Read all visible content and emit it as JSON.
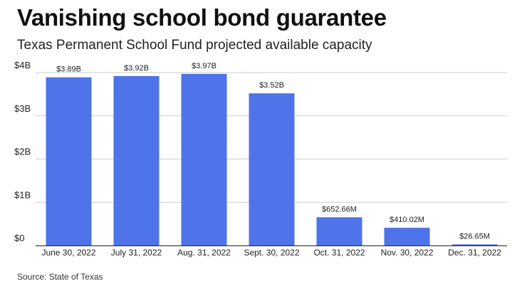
{
  "title": "Vanishing school bond guarantee",
  "subtitle": "Texas Permanent School Fund projected available capacity",
  "source": "Source: State of Texas",
  "colors": {
    "bar": "#4f73e8",
    "grid": "#cccccc",
    "axis": "#222222"
  },
  "chart_data": {
    "type": "bar",
    "categories": [
      "June 30, 2022",
      "July 31, 2022",
      "Aug. 31, 2022",
      "Sept. 30, 2022",
      "Oct. 31, 2022",
      "Nov. 30, 2022",
      "Dec. 31, 2022"
    ],
    "values": [
      3.89,
      3.92,
      3.97,
      3.52,
      0.65266,
      0.41002,
      0.02665
    ],
    "value_labels": [
      "$3.89B",
      "$3.92B",
      "$3.97B",
      "$3.52B",
      "$652.66M",
      "$410.02M",
      "$26.65M"
    ],
    "unit": "billion USD",
    "ylim": [
      0,
      4
    ],
    "yticks": [
      0,
      1,
      2,
      3,
      4
    ],
    "ytick_labels": [
      "$0",
      "$1B",
      "$2B",
      "$3B",
      "$4B"
    ],
    "grid": true,
    "legend": "none"
  }
}
